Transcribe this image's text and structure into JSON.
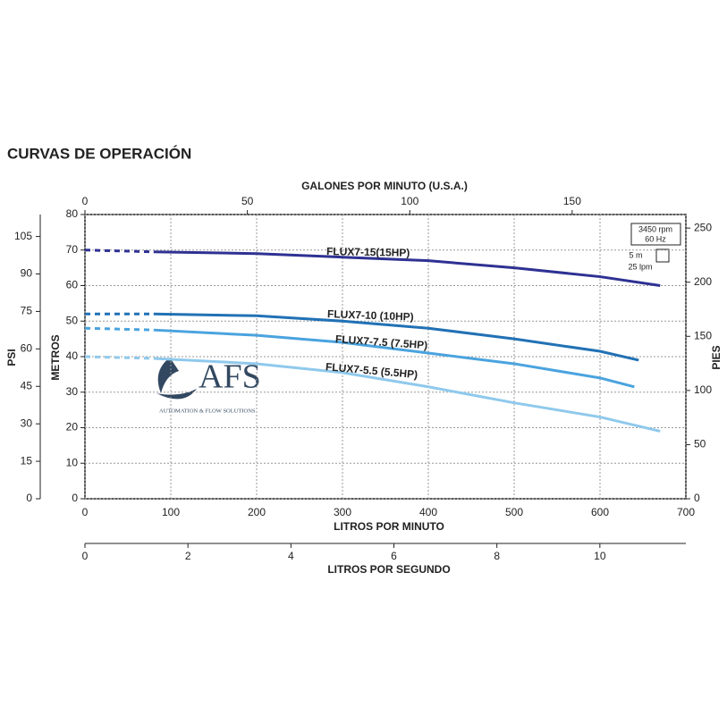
{
  "chart_data": {
    "type": "line",
    "title": "CURVAS DE OPERACIÓN",
    "xlabel": "LITROS POR MINUTO",
    "xlim": [
      0,
      700
    ],
    "xticks": [
      0,
      100,
      200,
      300,
      400,
      500,
      600,
      700
    ],
    "x2label": "GALONES POR MINUTO (U.S.A.)",
    "x2lim": [
      0,
      185
    ],
    "x2ticks": [
      0,
      50,
      100,
      150
    ],
    "x3label": "LITROS POR SEGUNDO",
    "x3lim": [
      0,
      11.67
    ],
    "x3ticks": [
      0,
      2,
      4,
      6,
      8,
      10
    ],
    "ylabel": "METROS",
    "ylim": [
      0,
      80
    ],
    "yticks": [
      0,
      10,
      20,
      30,
      40,
      50,
      60,
      70,
      80
    ],
    "y2label": "PIES",
    "y2lim": [
      0,
      262.5
    ],
    "y2ticks": [
      0,
      50,
      100,
      150,
      200,
      250
    ],
    "y3label": "PSI",
    "y3lim": [
      0,
      113.8
    ],
    "y3ticks": [
      0,
      15,
      30,
      45,
      60,
      75,
      90,
      105
    ],
    "grid": true,
    "annotations": [
      "3450 rpm",
      "60 Hz",
      "5 m",
      "25 lpm"
    ],
    "watermark": {
      "text": "AFS",
      "subtitle": "AUTOMATION & FLOW SOLUTIONS"
    },
    "series": [
      {
        "name": "FLUX7-15(15HP)",
        "color": "#2e3192",
        "dashed_to": 80,
        "x": [
          0,
          80,
          200,
          300,
          400,
          500,
          600,
          670
        ],
        "values": [
          70,
          69.5,
          69,
          68,
          67,
          65,
          62.5,
          60
        ]
      },
      {
        "name": "FLUX7-10 (10HP)",
        "color": "#2171b5",
        "dashed_to": 80,
        "x": [
          0,
          80,
          200,
          300,
          400,
          500,
          600,
          645
        ],
        "values": [
          52,
          52,
          51.5,
          50,
          48,
          45,
          41.5,
          39
        ]
      },
      {
        "name": "FLUX7-7.5 (7.5HP)",
        "color": "#4aa3df",
        "dashed_to": 80,
        "x": [
          0,
          80,
          200,
          300,
          400,
          500,
          600,
          640
        ],
        "values": [
          48,
          47.5,
          46,
          44,
          41,
          38,
          34,
          31.5
        ]
      },
      {
        "name": "FLUX7-5.5 (5.5HP)",
        "color": "#8fc9ec",
        "dashed_to": 80,
        "x": [
          0,
          80,
          200,
          300,
          400,
          500,
          600,
          670
        ],
        "values": [
          40,
          39.5,
          38,
          35.5,
          31.5,
          27,
          23,
          19
        ]
      }
    ]
  }
}
